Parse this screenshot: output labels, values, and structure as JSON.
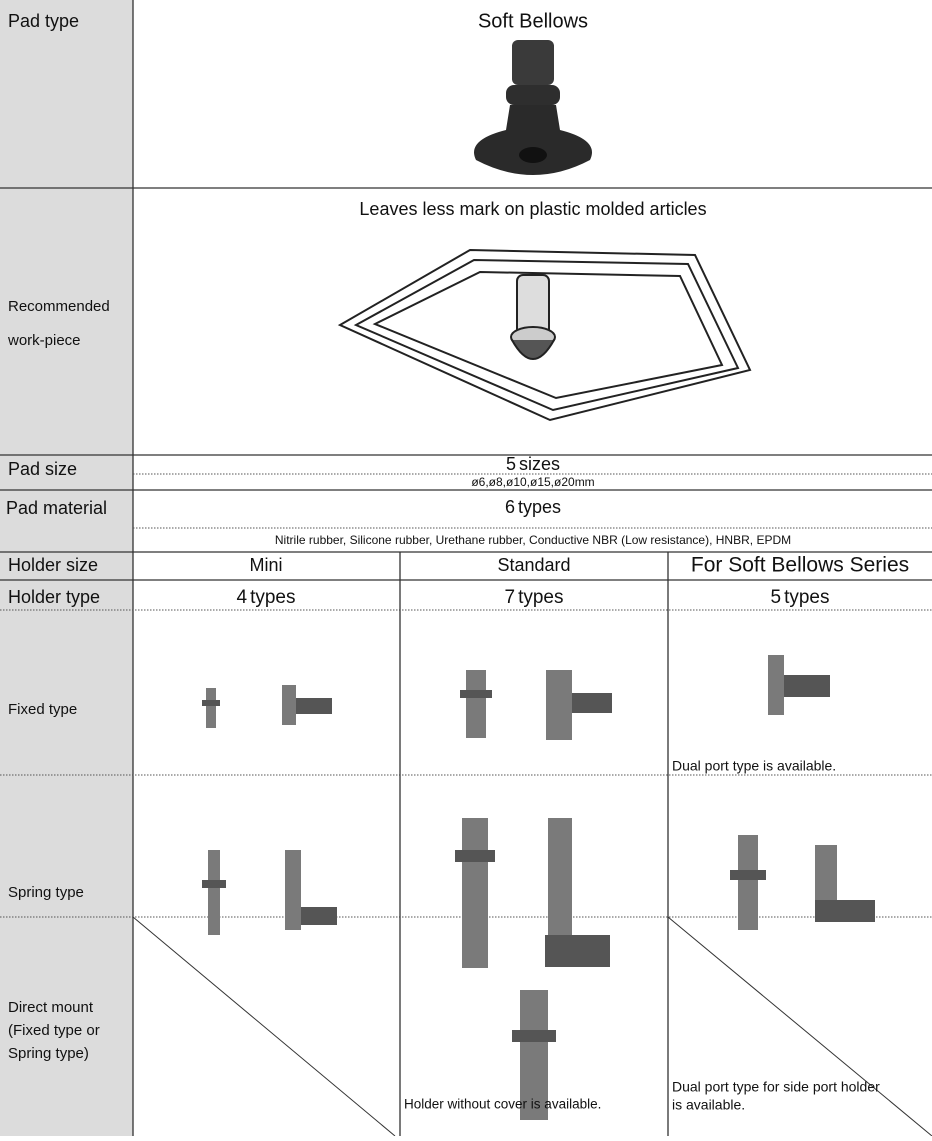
{
  "rows": {
    "pad_type": {
      "label": "Pad type",
      "value": "Soft Bellows"
    },
    "recommended_workpiece": {
      "label": [
        "Recommended",
        "work-piece"
      ],
      "text": "Leaves less mark on plastic molded articles"
    },
    "pad_size": {
      "label": "Pad size",
      "count": 5,
      "unit": "sizes",
      "detail": "ø6,ø8,ø10,ø15,ø20mm"
    },
    "pad_material": {
      "label": "Pad material",
      "count": 6,
      "unit": "types",
      "detail": "Nitrile rubber, Silicone rubber, Urethane rubber, Conductive NBR (Low resistance), HNBR, EPDM"
    },
    "holder_size": {
      "label": "Holder size",
      "values": [
        "Mini",
        "Standard",
        "For Soft Bellows Series"
      ]
    },
    "holder_type": {
      "label": "Holder type",
      "counts": [
        4,
        7,
        5
      ],
      "units": [
        "types",
        "types",
        "types"
      ]
    },
    "fixed_type": {
      "label": "Fixed type",
      "note_soft_bellows": "Dual port type is available."
    },
    "spring_type": {
      "label": "Spring type",
      "note_standard": "Holder without cover is available.",
      "note_soft_bellows": [
        "Dual port type for side port holder",
        "is available."
      ]
    },
    "direct_mount": {
      "label": [
        "Direct mount",
        "(Fixed type or",
        "Spring type)"
      ]
    }
  }
}
